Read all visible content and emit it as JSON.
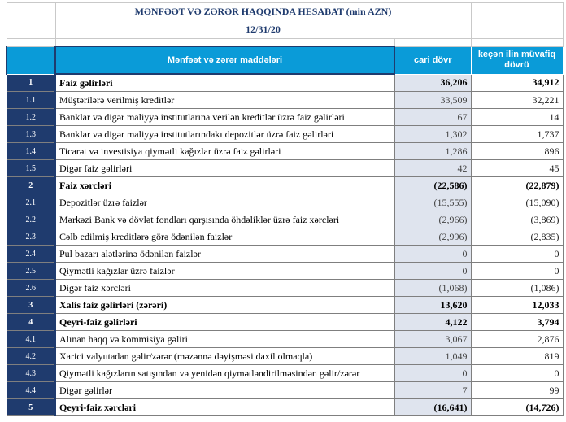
{
  "report": {
    "title": "MƏNFƏƏT VƏ ZƏRƏR HAQQINDA HESABAT (min AZN)",
    "date": "12/31/20"
  },
  "header": {
    "item_col": "Mənfəət və zərər maddələri",
    "current_col": "cari dövr",
    "prior_col": "keçən ilin müvafiq dövrü"
  },
  "rows": [
    {
      "num": "1",
      "label": "Faiz  gəlirləri",
      "current": "36,206",
      "prior": "34,912",
      "bold": true
    },
    {
      "num": "1.1",
      "label": "Müştərilərə verilmiş kreditlər",
      "current": "33,509",
      "prior": "32,221",
      "bold": false
    },
    {
      "num": "1.2",
      "label": "Banklar və digər maliyyə institutlarına verilən kreditlər üzrə faiz gəlirləri",
      "current": "67",
      "prior": "14",
      "bold": false
    },
    {
      "num": "1.3",
      "label": "Banklar və digər maliyyə institutlarındakı depozitlər üzrə faiz gəlirləri",
      "current": "1,302",
      "prior": "1,737",
      "bold": false
    },
    {
      "num": "1.4",
      "label": "Ticarət və investisiya qiymətli kağızlar üzrə faiz gəlirləri",
      "current": "1,286",
      "prior": "896",
      "bold": false
    },
    {
      "num": "1.5",
      "label": "Digər faiz gəlirləri",
      "current": "42",
      "prior": "45",
      "bold": false
    },
    {
      "num": "2",
      "label": "Faiz xərcləri",
      "current": "(22,586)",
      "prior": "(22,879)",
      "bold": true
    },
    {
      "num": "2.1",
      "label": "Depozitlər üzrə faizlər",
      "current": "(15,555)",
      "prior": "(15,090)",
      "bold": false
    },
    {
      "num": "2.2",
      "label": "Mərkəzi Bank və dövlət fondları qarşısında öhdəliklər üzrə faiz xərcləri",
      "current": "(2,966)",
      "prior": "(3,869)",
      "bold": false
    },
    {
      "num": "2.3",
      "label": "Cəlb edilmiş kreditlərə görə ödənilən faizlər",
      "current": "(2,996)",
      "prior": "(2,835)",
      "bold": false
    },
    {
      "num": "2.4",
      "label": "Pul bazarı alətlərinə ödənilən faizlər",
      "current": "0",
      "prior": "0",
      "bold": false
    },
    {
      "num": "2.5",
      "label": "Qiymətli kağızlar üzrə faizlər",
      "current": "0",
      "prior": "0",
      "bold": false
    },
    {
      "num": "2.6",
      "label": "Digər faiz xərcləri",
      "current": "(1,068)",
      "prior": "(1,086)",
      "bold": false
    },
    {
      "num": "3",
      "label": "Xalis faiz gəlirləri (zərəri)",
      "current": "13,620",
      "prior": "12,033",
      "bold": true
    },
    {
      "num": "4",
      "label": "Qeyri-faiz gəlirləri",
      "current": "4,122",
      "prior": "3,794",
      "bold": true
    },
    {
      "num": "4.1",
      "label": "Alınan haqq və kommisiya gəliri",
      "current": "3,067",
      "prior": "2,876",
      "bold": false
    },
    {
      "num": "4.2",
      "label": "Xarici valyutadan gəlir/zərər (məzənnə dəyişməsi daxil olmaqla)",
      "current": "1,049",
      "prior": "819",
      "bold": false
    },
    {
      "num": "4.3",
      "label": "Qiymətli kağızların satışından və yenidən qiymətləndirilməsindən gəlir/zərər",
      "current": "0",
      "prior": "0",
      "bold": false
    },
    {
      "num": "4.4",
      "label": "Digər gəlirlər",
      "current": "7",
      "prior": "99",
      "bold": false
    },
    {
      "num": "5",
      "label": "Qeyri-faiz xərcləri",
      "current": "(16,641)",
      "prior": "(14,726)",
      "bold": true
    }
  ]
}
